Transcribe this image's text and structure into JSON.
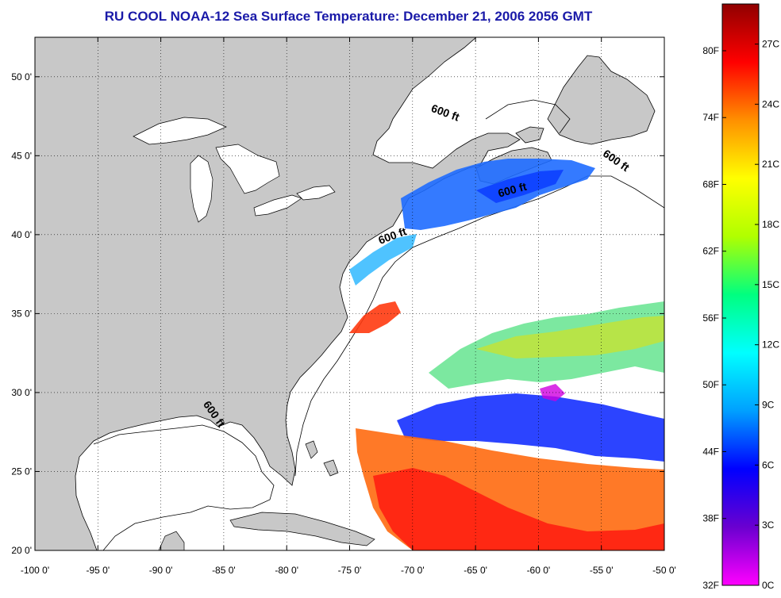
{
  "title": "RU COOL  NOAA-12  Sea Surface Temperature:  December 21, 2006 2056 GMT",
  "map": {
    "lon_range": [
      -100,
      -50
    ],
    "lat_range": [
      20,
      52.5
    ],
    "lon_ticks": [
      {
        "value": -100,
        "label": "-100 0'"
      },
      {
        "value": -95,
        "label": "-95 0'"
      },
      {
        "value": -90,
        "label": "-90 0'"
      },
      {
        "value": -85,
        "label": "-85 0'"
      },
      {
        "value": -80,
        "label": "-80 0'"
      },
      {
        "value": -75,
        "label": "-75 0'"
      },
      {
        "value": -70,
        "label": "-70 0'"
      },
      {
        "value": -65,
        "label": "-65 0'"
      },
      {
        "value": -60,
        "label": "-60 0'"
      },
      {
        "value": -55,
        "label": "-55 0'"
      },
      {
        "value": -50,
        "label": "-50 0'"
      }
    ],
    "lat_ticks": [
      {
        "value": 20,
        "label": "20 0'"
      },
      {
        "value": 25,
        "label": "25 0'"
      },
      {
        "value": 30,
        "label": "30 0'"
      },
      {
        "value": 35,
        "label": "35 0'"
      },
      {
        "value": 40,
        "label": "40 0'"
      },
      {
        "value": 45,
        "label": "45 0'"
      },
      {
        "value": 50,
        "label": "50 0'"
      }
    ],
    "grid": "dotted",
    "land_color": "#c8c8c8",
    "ocean_color": "#ffffff",
    "contour_labels": [
      {
        "text": "600 ft",
        "lon": -67.5,
        "lat": 47.5,
        "angle": 20
      },
      {
        "text": "600 ft",
        "lon": -54.0,
        "lat": 44.5,
        "angle": 35
      },
      {
        "text": "600 ft",
        "lon": -62.0,
        "lat": 42.6,
        "angle": -15
      },
      {
        "text": "600 ft",
        "lon": -71.5,
        "lat": 39.7,
        "angle": -20
      },
      {
        "text": "600 ft",
        "lon": -86.0,
        "lat": 28.5,
        "angle": 55
      }
    ]
  },
  "colorbar": {
    "f_labels": [
      {
        "value": 80,
        "label": "80F"
      },
      {
        "value": 74,
        "label": "74F"
      },
      {
        "value": 68,
        "label": "68F"
      },
      {
        "value": 62,
        "label": "62F"
      },
      {
        "value": 56,
        "label": "56F"
      },
      {
        "value": 50,
        "label": "50F"
      },
      {
        "value": 44,
        "label": "44F"
      },
      {
        "value": 38,
        "label": "38F"
      },
      {
        "value": 32,
        "label": "32F"
      }
    ],
    "c_labels": [
      {
        "value": 27,
        "label": "27C"
      },
      {
        "value": 24,
        "label": "24C"
      },
      {
        "value": 21,
        "label": "21C"
      },
      {
        "value": 18,
        "label": "18C"
      },
      {
        "value": 15,
        "label": "15C"
      },
      {
        "value": 12,
        "label": "12C"
      },
      {
        "value": 9,
        "label": "9C"
      },
      {
        "value": 6,
        "label": "6C"
      },
      {
        "value": 3,
        "label": "3C"
      },
      {
        "value": 0,
        "label": "0C"
      }
    ],
    "c_range": [
      0,
      29
    ],
    "colors": [
      "#ff00ff",
      "#6a00d0",
      "#0000ff",
      "#00a0ff",
      "#00ffff",
      "#00ff80",
      "#b0ff00",
      "#ffff00",
      "#ff9000",
      "#ff0000",
      "#900000"
    ]
  }
}
